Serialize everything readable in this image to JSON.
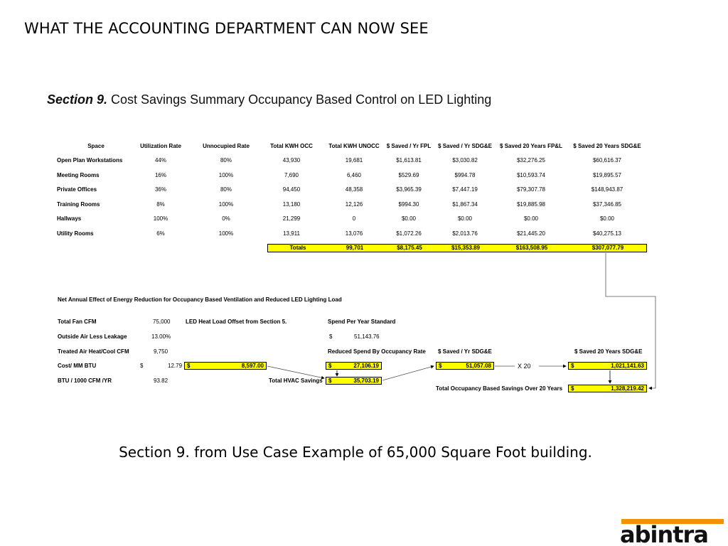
{
  "slide": {
    "title": "WHAT THE ACCOUNTING DEPARTMENT CAN NOW SEE",
    "section_label": "Section 9.",
    "section_title": " Cost Savings Summary Occupancy Based Control on LED Lighting",
    "caption": "Section 9. from Use Case Example of 65,000 Square Foot building.",
    "logo_text": "abintra"
  },
  "table": {
    "headers": [
      "Space",
      "Utilization Rate",
      "Unnocupied Rate",
      "Total KWH OCC",
      "Total KWH UNOCC",
      "$ Saved / Yr FPL",
      "$ Saved / Yr SDG&E",
      "$ Saved 20 Years FP&L",
      "$ Saved 20 Years SDG&E"
    ],
    "rows": [
      [
        "Open Plan Workstations",
        "44%",
        "80%",
        "43,930",
        "19,681",
        "$1,613.81",
        "$3,030.82",
        "$32,276.25",
        "$60,616.37"
      ],
      [
        "Meeting Rooms",
        "16%",
        "100%",
        "7,690",
        "6,460",
        "$529.69",
        "$994.78",
        "$10,593.74",
        "$19,895.57"
      ],
      [
        "Private Offices",
        "36%",
        "80%",
        "94,450",
        "48,358",
        "$3,965.39",
        "$7,447.19",
        "$79,307.78",
        "$148,943.87"
      ],
      [
        "Training Rooms",
        "8%",
        "100%",
        "13,180",
        "12,126",
        "$994.30",
        "$1,867.34",
        "$19,885.98",
        "$37,346.85"
      ],
      [
        "Hallways",
        "100%",
        "0%",
        "21,299",
        "0",
        "$0.00",
        "$0.00",
        "$0.00",
        "$0.00"
      ],
      [
        "Utility Rooms",
        "6%",
        "100%",
        "13,911",
        "13,076",
        "$1,072.26",
        "$2,013.76",
        "$21,445.20",
        "$40,275.13"
      ]
    ],
    "totals": [
      "Totals",
      "99,701",
      "$8,175.45",
      "$15,353.89",
      "$163,508.95",
      "$307,077.79"
    ]
  },
  "net": {
    "heading": "Net Annual Effect of Energy Reduction for Occupancy Based Ventilation and Reduced LED Lighting Load",
    "total_fan_cfm_label": "Total Fan CFM",
    "total_fan_cfm_value": "75,000",
    "outside_air_label": "Outside Air Less Leakage",
    "outside_air_value": "13.00%",
    "treated_air_label": "Treated Air Heat/Cool CFM",
    "treated_air_value": "9,750",
    "cost_mm_btu_label": "Cost/ MM BTU",
    "cost_mm_btu_currency": "$",
    "cost_mm_btu_value": "12.79",
    "btu_label": "BTU / 1000 CFM /YR",
    "btu_value": "93.82",
    "led_heat_label": "LED Heat Load Offset from Section 5.",
    "led_heat_currency": "$",
    "led_heat_value": "8,597.00",
    "spend_std_label": "Spend Per Year Standard",
    "spend_std_currency": "$",
    "spend_std_value": "51,143.76",
    "reduced_spend_label": "Reduced Spend By Occupancy Rate",
    "reduced_spend_currency": "$",
    "reduced_spend_value": "27,106.19",
    "total_hvac_label": "Total HVAC Savings",
    "total_hvac_currency": "$",
    "total_hvac_value": "35,703.19",
    "saved_yr_label": "$ Saved / Yr SDG&E",
    "saved_yr_currency": "$",
    "saved_yr_value": "51,057.08",
    "multiplier": "X 20",
    "saved_20_label": "$ Saved 20 Years SDG&E",
    "saved_20_currency": "$",
    "saved_20_value": "1,021,141.63",
    "total_occ_label": "Total Occupancy Based Savings Over 20 Years",
    "total_occ_currency": "$",
    "total_occ_value": "1,328,219.42"
  },
  "colors": {
    "highlight": "#ffff00",
    "logo_orange": "#f39200",
    "logo_text": "#111111"
  }
}
